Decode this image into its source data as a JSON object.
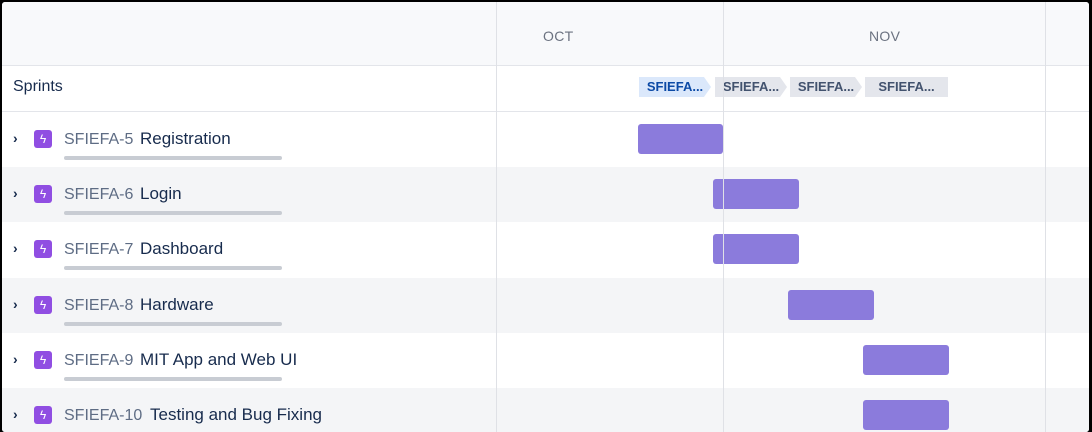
{
  "timeline": {
    "months": [
      "OCT",
      "NOV"
    ],
    "sprints_label": "Sprints",
    "sprints": [
      {
        "label": "SFIEFA...",
        "active": true
      },
      {
        "label": "SFIEFA...",
        "active": false
      },
      {
        "label": "SFIEFA...",
        "active": false
      },
      {
        "label": "SFIEFA...",
        "active": false
      }
    ]
  },
  "issues": [
    {
      "key": "SFIEFA-5",
      "title": "Registration"
    },
    {
      "key": "SFIEFA-6",
      "title": "Login"
    },
    {
      "key": "SFIEFA-7",
      "title": "Dashboard"
    },
    {
      "key": "SFIEFA-8",
      "title": "Hardware"
    },
    {
      "key": "SFIEFA-9",
      "title": "MIT App and Web UI"
    },
    {
      "key": "SFIEFA-10",
      "title": "Testing and Bug Fixing"
    }
  ],
  "icons": {
    "expand": "chevron-right-icon",
    "issue_type": "epic-lightning-icon"
  },
  "colors": {
    "bar": "#8b7bdc",
    "epic_icon": "#904ee2",
    "active_sprint": "#dbe8fb"
  }
}
